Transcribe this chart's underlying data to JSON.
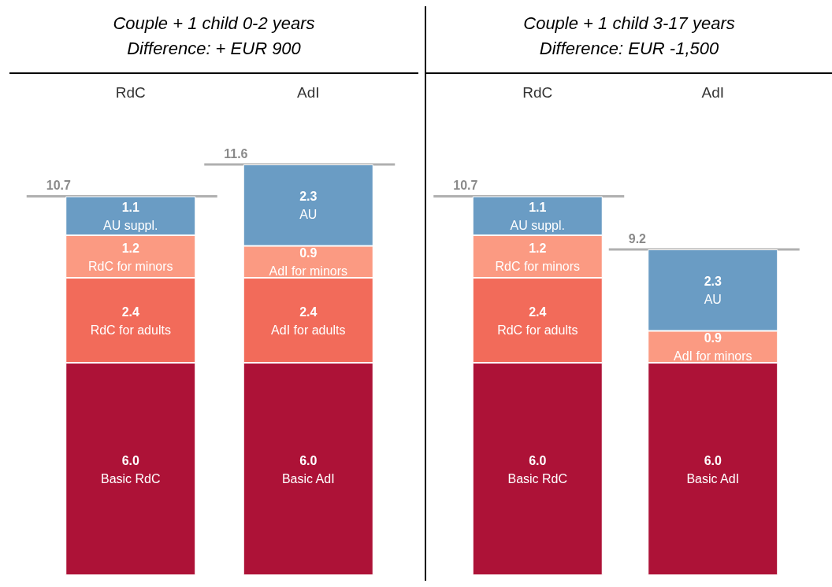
{
  "chart_data": [
    {
      "type": "bar",
      "title": "Couple + 1 child 0-2 years",
      "subtitle": "Difference: + EUR 900",
      "categories": [
        "RdC",
        "AdI"
      ],
      "stacked": true,
      "totals": [
        "10.7",
        "11.6"
      ],
      "ref_lines": [
        {
          "axis": "y",
          "value": 10.7,
          "label": null,
          "color": "#b0b0b0"
        },
        {
          "axis": "y",
          "value": 11.6,
          "label": null,
          "color": "#b0b0b0"
        }
      ],
      "series": [
        {
          "color": "#ad1237",
          "values": [
            6.0,
            6.0
          ],
          "value_labels": [
            "6.0\nBasic RdC",
            "6.0\nBasic AdI"
          ]
        },
        {
          "color": "#f26b5a",
          "values": [
            2.4,
            2.4
          ],
          "value_labels": [
            "2.4\nRdC for adults",
            "2.4\nAdI for adults"
          ]
        },
        {
          "color": "#fb9a82",
          "values": [
            1.2,
            0.9
          ],
          "value_labels": [
            "1.2\nRdC for minors",
            "0.9\nAdI for minors"
          ]
        },
        {
          "color": "#6a9cc4",
          "values": [
            1.1,
            2.3
          ],
          "value_labels": [
            "1.1\nAU suppl.",
            "2.3\nAU"
          ]
        }
      ]
    },
    {
      "type": "bar",
      "title": "Couple + 1 child 3-17 years",
      "subtitle": "Difference: EUR -1,500",
      "categories": [
        "RdC",
        "AdI"
      ],
      "stacked": true,
      "totals": [
        "10.7",
        "9.2"
      ],
      "ref_lines": [
        {
          "axis": "y",
          "value": 10.7,
          "label": null,
          "color": "#b0b0b0"
        },
        {
          "axis": "y",
          "value": 9.2,
          "label": null,
          "color": "#b0b0b0"
        }
      ],
      "series": [
        {
          "color": "#ad1237",
          "values": [
            6.0,
            6.0
          ],
          "value_labels": [
            "6.0\nBasic RdC",
            "6.0\nBasic AdI"
          ]
        },
        {
          "color": "#f26b5a",
          "values": [
            2.4,
            null
          ],
          "value_labels": [
            "2.4\nRdC for adults",
            null
          ]
        },
        {
          "color": "#fb9a82",
          "values": [
            1.2,
            0.9
          ],
          "value_labels": [
            "1.2\nRdC for minors",
            "0.9\nAdI for minors"
          ]
        },
        {
          "color": "#6a9cc4",
          "values": [
            1.1,
            2.3
          ],
          "value_labels": [
            "1.1\nAU suppl.",
            "2.3\nAU"
          ]
        }
      ]
    }
  ]
}
